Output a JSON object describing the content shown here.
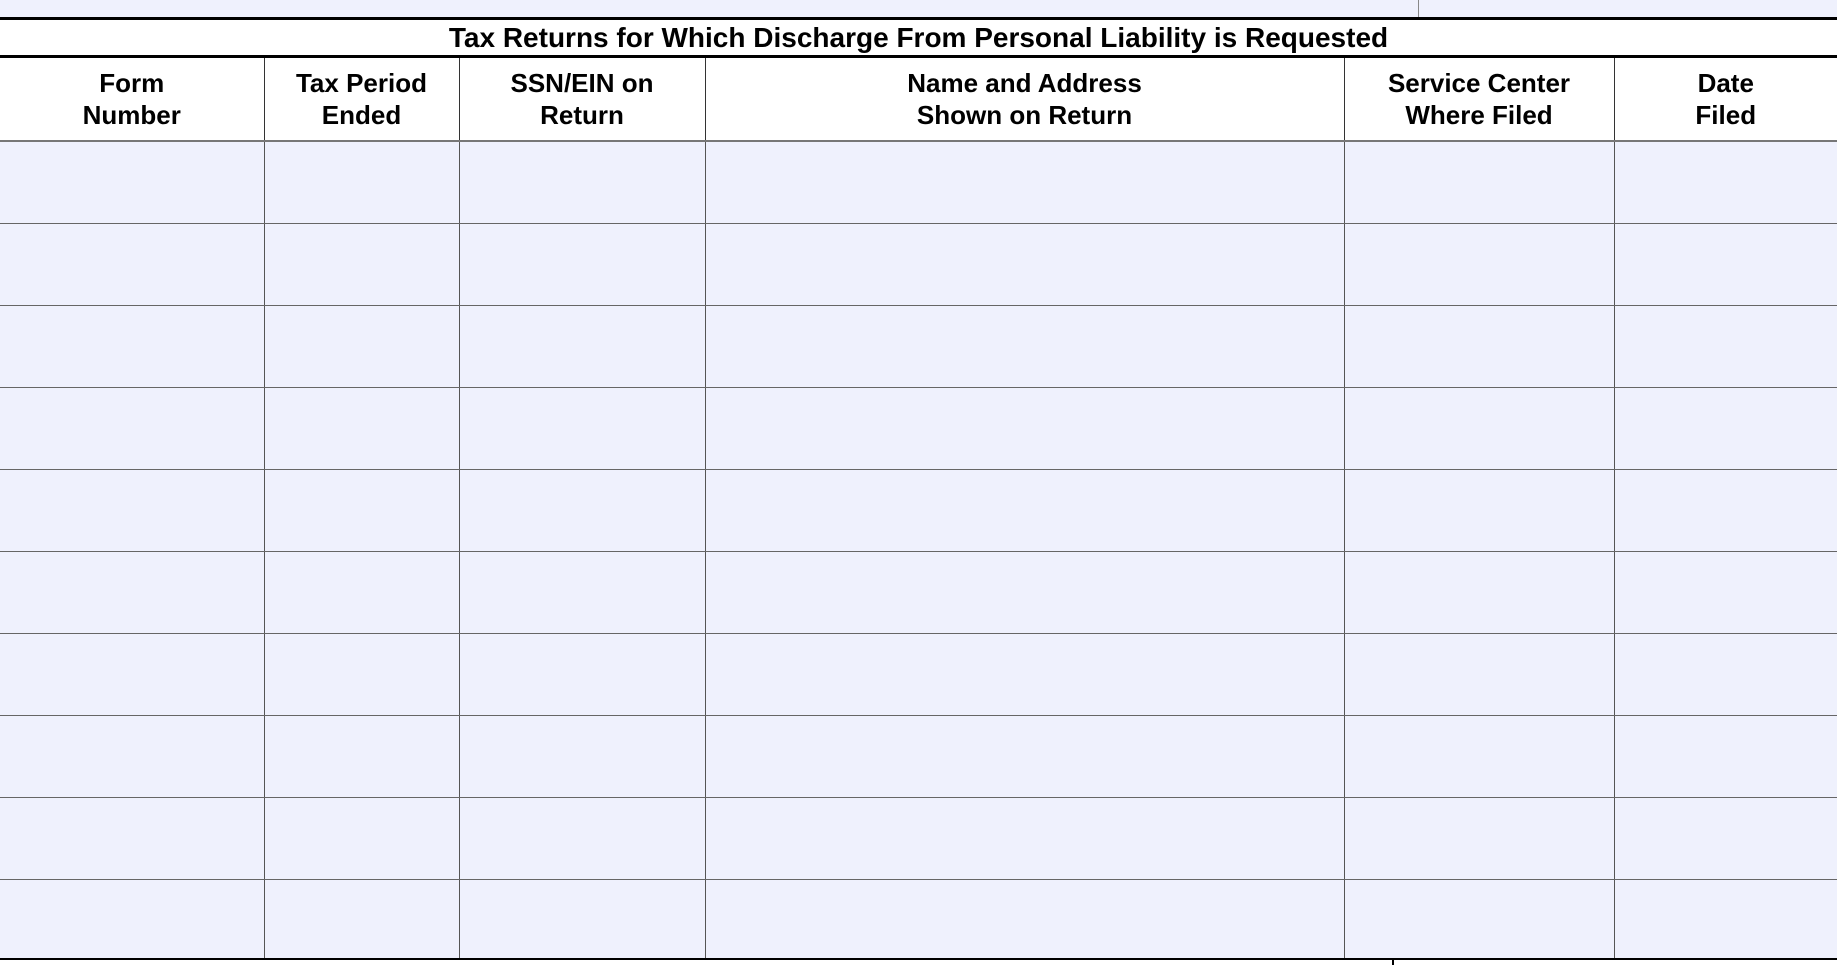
{
  "title": "Tax Returns for Which Discharge From Personal Liability is Requested",
  "columns": [
    "Form\nNumber",
    "Tax Period\nEnded",
    "SSN/EIN on\nReturn",
    "Name and Address\nShown on Return",
    "Service Center\nWhere Filed",
    "Date\nFiled"
  ],
  "column_labels": [
    {
      "l1": "Form",
      "l2": "Number"
    },
    {
      "l1": "Tax Period",
      "l2": "Ended"
    },
    {
      "l1": "SSN/EIN on",
      "l2": "Return"
    },
    {
      "l1": "Name and Address",
      "l2": "Shown on Return"
    },
    {
      "l1": "Service Center",
      "l2": "Where Filed"
    },
    {
      "l1": "Date",
      "l2": "Filed"
    }
  ],
  "row_count": 10,
  "field_fill_color": "#eff1fd"
}
